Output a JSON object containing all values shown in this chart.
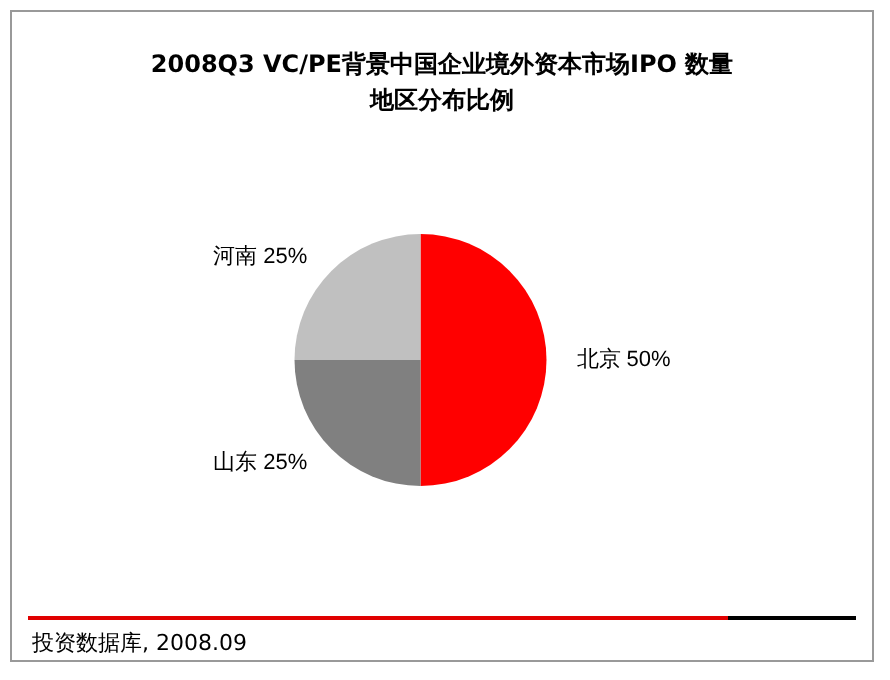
{
  "chart_data": {
    "type": "pie",
    "title": "2008Q3 VC/PE背景中国企业境外资本市场IPO 数量地区分布比例",
    "categories": [
      "北京",
      "山东",
      "河南"
    ],
    "values": [
      50,
      25,
      25
    ],
    "colors": [
      "#ff0000",
      "#808080",
      "#c0c0c0"
    ],
    "value_labels": [
      "50%",
      "25%",
      "25%"
    ],
    "legend": false,
    "annotations": [
      "投资数据库, 2008.09"
    ]
  }
}
